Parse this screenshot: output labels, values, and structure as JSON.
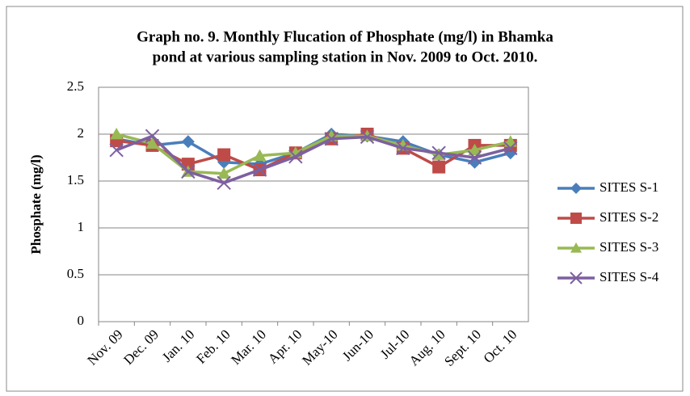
{
  "chart_data": {
    "type": "line",
    "title": [
      "Graph no. 9. Monthly  Flucation of Phosphate (mg/l) in Bhamka",
      "pond at various sampling station in Nov. 2009 to Oct. 2010."
    ],
    "y_label": "Phosphate (mg/l)",
    "categories": [
      "Nov. 09",
      "Dec. 09",
      "Jan. 10",
      "Feb. 10",
      "Mar. 10",
      "Apr. 10",
      "May-10",
      "Jun-10",
      "Jul-10",
      "Aug. 10",
      "Sept. 10",
      "Oct. 10"
    ],
    "series": [
      {
        "name": "SITES S-1",
        "color": "#4a7ebb",
        "marker": "diamond",
        "values": [
          1.95,
          1.88,
          1.92,
          1.7,
          1.68,
          1.8,
          2.0,
          1.98,
          1.92,
          1.78,
          1.7,
          1.8
        ]
      },
      {
        "name": "SITES S-2",
        "color": "#be4b48",
        "marker": "square",
        "values": [
          1.93,
          1.88,
          1.68,
          1.78,
          1.62,
          1.8,
          1.95,
          2.0,
          1.85,
          1.65,
          1.88,
          1.88
        ]
      },
      {
        "name": "SITES S-3",
        "color": "#98b954",
        "marker": "triangle",
        "values": [
          2.0,
          1.9,
          1.6,
          1.58,
          1.77,
          1.8,
          1.98,
          1.98,
          1.88,
          1.78,
          1.83,
          1.92
        ]
      },
      {
        "name": "SITES S-4",
        "color": "#7d60a0",
        "marker": "x",
        "values": [
          1.83,
          1.98,
          1.6,
          1.48,
          1.62,
          1.76,
          1.95,
          1.97,
          1.85,
          1.8,
          1.75,
          1.85
        ]
      }
    ],
    "ylim": [
      0,
      2.5
    ],
    "yticks": [
      0,
      0.5,
      1,
      1.5,
      2,
      2.5
    ],
    "grid": true,
    "legend": "right"
  }
}
